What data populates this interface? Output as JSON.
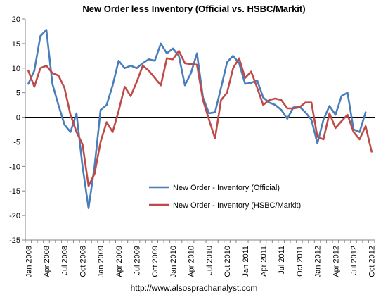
{
  "chart_data": {
    "type": "line",
    "title": "New Order less Inventory (Official vs. HSBC/Markit)",
    "xlabel": "",
    "ylabel": "",
    "ylim": [
      -25,
      20
    ],
    "yticks": [
      -25,
      -20,
      -15,
      -10,
      -5,
      0,
      5,
      10,
      15,
      20
    ],
    "x_start": "Jan 2008",
    "x_tick_labels": [
      "Jan 2008",
      "Apr 2008",
      "Jul 2008",
      "Oct 2008",
      "Jan 2009",
      "Apr 2009",
      "Jul 2009",
      "Oct 2009",
      "Jan 2010",
      "Apr 2010",
      "Jul 2010",
      "Oct 2010",
      "Jan 2011",
      "Apr 2011",
      "Jul 2011",
      "Oct 2011",
      "Jan 2012",
      "Apr 2012",
      "Jul 2012",
      "Oct 2012"
    ],
    "legend_position": "lower-center",
    "series": [
      {
        "name": "New Order - Inventory (Official)",
        "color": "#4a7ebb",
        "values": [
          6.8,
          9.5,
          16.5,
          17.8,
          6.8,
          2.5,
          -1.5,
          -3,
          0.8,
          -10,
          -18.5,
          -10,
          1.5,
          2.5,
          6.5,
          11.5,
          10,
          10.5,
          10,
          11,
          11.8,
          11.5,
          15,
          13,
          14,
          12.5,
          6.5,
          9,
          13,
          4,
          0.8,
          1,
          6,
          11.2,
          12.5,
          11,
          6.8,
          7,
          7.5,
          4,
          3,
          2.5,
          1.5,
          -0.3,
          2,
          2.2,
          1,
          -0.5,
          -5.3,
          -0.5,
          2.3,
          0.5,
          4.3,
          5,
          -2.5,
          -3,
          1
        ]
      },
      {
        "name": "New Order - Inventory (HSBC/Markit)",
        "color": "#be4b48",
        "values": [
          9.5,
          6.2,
          10,
          10.5,
          9,
          8.5,
          6,
          0.5,
          -3,
          -5.5,
          -14,
          -11.5,
          -5,
          -1,
          -3,
          1.3,
          6.2,
          4.3,
          7.2,
          10.5,
          9.5,
          8,
          6.5,
          12,
          11.8,
          13.5,
          11,
          10.8,
          10.7,
          3.5,
          -0.5,
          -4.3,
          3.5,
          5,
          10,
          12,
          8,
          9.3,
          6,
          2.5,
          3.5,
          3.8,
          3.5,
          1.8,
          1.8,
          2,
          3,
          3,
          -4,
          -4.5,
          0.8,
          -2.2,
          -0.8,
          0.5,
          -3,
          -4.5,
          -1.8,
          -7
        ]
      }
    ]
  },
  "footer_text": "http://www.alsosprachanalyst.com"
}
